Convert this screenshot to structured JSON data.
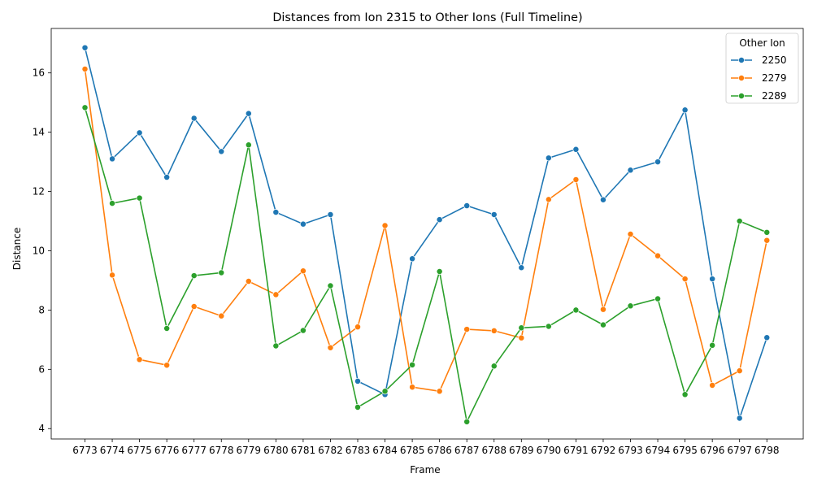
{
  "chart_data": {
    "type": "line",
    "title": "Distances from Ion 2315 to Other Ions (Full Timeline)",
    "xlabel": "Frame",
    "ylabel": "Distance",
    "ylim": [
      3.65,
      17.5
    ],
    "yticks": [
      4,
      6,
      8,
      10,
      12,
      14,
      16
    ],
    "grid": false,
    "legend": {
      "title": "Other Ion",
      "placement": "top-right"
    },
    "categories": [
      "6773",
      "6774",
      "6775",
      "6776",
      "6777",
      "6778",
      "6779",
      "6780",
      "6781",
      "6782",
      "6783",
      "6784",
      "6785",
      "6786",
      "6787",
      "6788",
      "6789",
      "6790",
      "6791",
      "6792",
      "6793",
      "6794",
      "6795",
      "6796",
      "6797",
      "6798"
    ],
    "series": [
      {
        "name": "2250",
        "color": "#1f77b4",
        "values": [
          16.85,
          13.1,
          13.98,
          12.48,
          14.47,
          13.35,
          14.63,
          11.3,
          10.9,
          11.22,
          5.6,
          5.15,
          9.73,
          11.05,
          11.52,
          11.22,
          9.43,
          13.13,
          13.42,
          11.72,
          12.72,
          13.0,
          14.75,
          9.05,
          4.35,
          7.07
        ]
      },
      {
        "name": "2279",
        "color": "#ff7f0e",
        "values": [
          16.13,
          9.18,
          6.33,
          6.14,
          8.12,
          7.8,
          8.97,
          8.52,
          9.32,
          6.73,
          7.43,
          10.85,
          5.4,
          5.26,
          7.35,
          7.3,
          7.06,
          11.73,
          12.4,
          8.02,
          10.56,
          9.83,
          9.05,
          5.46,
          5.95,
          10.35
        ]
      },
      {
        "name": "2289",
        "color": "#2ca02c",
        "values": [
          14.83,
          11.6,
          11.78,
          7.38,
          9.16,
          9.26,
          13.57,
          6.79,
          7.31,
          8.82,
          4.72,
          5.26,
          6.15,
          9.3,
          4.23,
          6.11,
          7.4,
          7.45,
          8.0,
          7.5,
          8.14,
          8.38,
          5.15,
          6.81,
          11.0,
          10.62
        ]
      }
    ]
  }
}
